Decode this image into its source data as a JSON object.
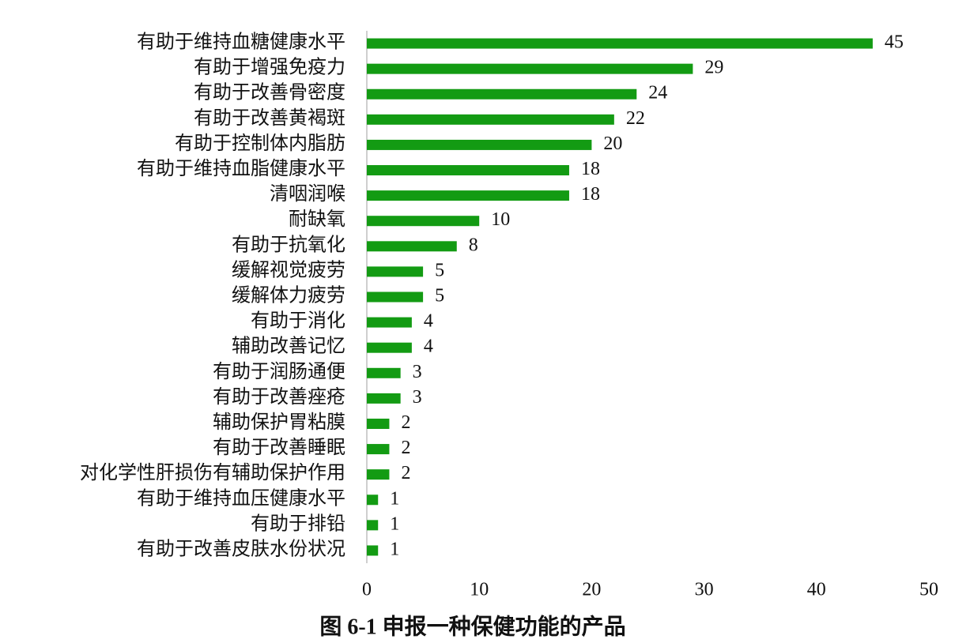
{
  "chart_data": {
    "type": "bar",
    "orientation": "horizontal",
    "title": "图 6-1 申报一种保健功能的产品",
    "categories": [
      "有助于维持血糖健康水平",
      "有助于增强免疫力",
      "有助于改善骨密度",
      "有助于改善黄褐斑",
      "有助于控制体内脂肪",
      "有助于维持血脂健康水平",
      "清咽润喉",
      "耐缺氧",
      "有助于抗氧化",
      "缓解视觉疲劳",
      "缓解体力疲劳",
      "有助于消化",
      "辅助改善记忆",
      "有助于润肠通便",
      "有助于改善痤疮",
      "辅助保护胃粘膜",
      "有助于改善睡眠",
      "对化学性肝损伤有辅助保护作用",
      "有助于维持血压健康水平",
      "有助于排铅",
      "有助于改善皮肤水份状况"
    ],
    "values": [
      45,
      29,
      24,
      22,
      20,
      18,
      18,
      10,
      8,
      5,
      5,
      4,
      4,
      3,
      3,
      2,
      2,
      2,
      1,
      1,
      1
    ],
    "color": "#139b13",
    "xlim": [
      0,
      50
    ],
    "xticks": [
      0,
      10,
      20,
      30,
      40,
      50
    ],
    "grid": false
  }
}
